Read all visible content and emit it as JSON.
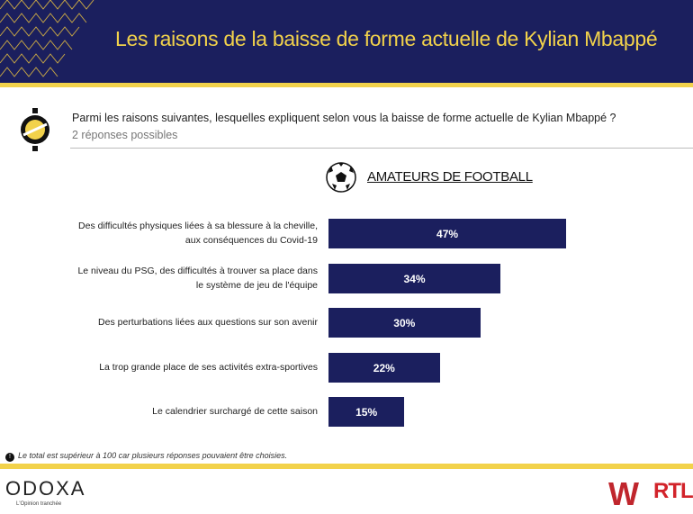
{
  "header": {
    "title": "Les raisons de la baisse de forme actuelle de Kylian Mbappé"
  },
  "question": {
    "text": "Parmi les raisons suivantes, lesquelles expliquent selon vous la baisse de forme actuelle de Kylian Mbappé ?",
    "subtitle": "2 réponses possibles"
  },
  "chart_data": {
    "type": "bar",
    "orientation": "horizontal",
    "title": "AMATEURS DE FOOTBALL",
    "categories": [
      "Des difficultés physiques liées à sa blessure à la cheville, aux conséquences du Covid-19",
      "Le niveau du PSG, des difficultés à trouver sa place dans le système de jeu de l'équipe",
      "Des perturbations liées aux questions sur son avenir",
      "La trop grande place de ses activités extra-sportives",
      "Le calendrier surchargé de cette saison"
    ],
    "values": [
      47,
      34,
      30,
      22,
      15
    ],
    "value_labels": [
      "47%",
      "34%",
      "30%",
      "22%",
      "15%"
    ],
    "xlim": [
      0,
      100
    ],
    "bar_color": "#1b1f5e"
  },
  "footer": {
    "note": "Le total est supérieur à 100 car plusieurs réponses pouvaient être choisies.",
    "brand": "ODOXA",
    "tagline": "L'Opinion tranchée",
    "partner1": "WINAMAX",
    "partner2": "RTL"
  }
}
